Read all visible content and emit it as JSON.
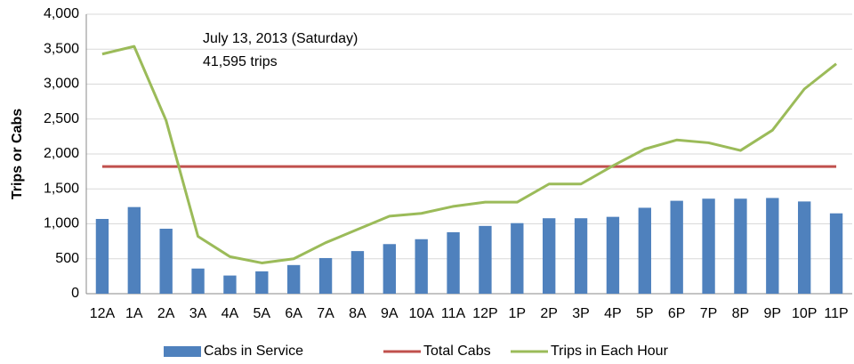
{
  "chart_data": {
    "type": "bar_line",
    "y_axis_label": "Trips or Cabs",
    "annotations": [
      "July 13, 2013 (Saturday)",
      "41,595 trips"
    ],
    "categories": [
      "12A",
      "1A",
      "2A",
      "3A",
      "4A",
      "5A",
      "6A",
      "7A",
      "8A",
      "9A",
      "10A",
      "11A",
      "12P",
      "1P",
      "2P",
      "3P",
      "4P",
      "5P",
      "6P",
      "7P",
      "8P",
      "9P",
      "10P",
      "11P"
    ],
    "series": [
      {
        "name": "Cabs in Service",
        "type": "bar",
        "color": "#4f81bd",
        "values": [
          1070,
          1240,
          930,
          360,
          260,
          320,
          410,
          510,
          610,
          710,
          780,
          880,
          970,
          1010,
          1080,
          1080,
          1100,
          1230,
          1330,
          1360,
          1360,
          1370,
          1320,
          1150
        ]
      },
      {
        "name": "Total Cabs",
        "type": "line",
        "color": "#c0504d",
        "values": [
          1820,
          1820,
          1820,
          1820,
          1820,
          1820,
          1820,
          1820,
          1820,
          1820,
          1820,
          1820,
          1820,
          1820,
          1820,
          1820,
          1820,
          1820,
          1820,
          1820,
          1820,
          1820,
          1820,
          1820
        ]
      },
      {
        "name": "Trips in Each Hour",
        "type": "line",
        "color": "#9bbb59",
        "values": [
          3430,
          3540,
          2480,
          820,
          530,
          440,
          500,
          730,
          920,
          1110,
          1150,
          1250,
          1310,
          1310,
          1570,
          1570,
          1830,
          2070,
          2200,
          2160,
          2050,
          2340,
          2930,
          3290
        ]
      }
    ],
    "ylim": [
      0,
      4000
    ],
    "yticks": [
      0,
      500,
      {
        "value": 1000,
        "label": "1,000"
      },
      {
        "value": 1500,
        "label": "1,500"
      },
      {
        "value": 2000,
        "label": "2,000"
      },
      {
        "value": 2500,
        "label": "2,500"
      },
      {
        "value": 3000,
        "label": "3,000"
      },
      {
        "value": 3500,
        "label": "3,500"
      },
      {
        "value": 4000,
        "label": "4,000"
      }
    ],
    "grid": true,
    "legend": "bottom"
  }
}
